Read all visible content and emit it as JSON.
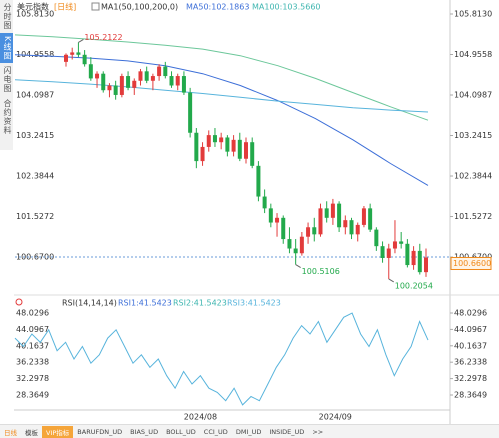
{
  "sidebar": {
    "tabs": [
      "分时图",
      "K线图",
      "闪电图",
      "合约资料"
    ]
  },
  "header": {
    "symbol": "美元指数",
    "period": "[日线]",
    "indicator": "MA1(50,100,200,0)",
    "ma50": "MA50:102.1863",
    "ma100": "MA100:103.5660"
  },
  "chart_data": [
    {
      "type": "candlestick",
      "up_color": "#e23b3b",
      "down_color": "#22a94b",
      "open": [
        104.8,
        104.95,
        105.0,
        104.95,
        104.75,
        104.45,
        104.55,
        104.2,
        104.3,
        104.1,
        104.5,
        104.25,
        104.4,
        104.6,
        104.4,
        104.5,
        104.7,
        104.5,
        104.3,
        104.5,
        104.15,
        103.3,
        102.7,
        103.0,
        103.25,
        103.1,
        103.2,
        102.9,
        103.15,
        102.75,
        103.1,
        102.6,
        101.95,
        101.7,
        101.4,
        101.5,
        101.05,
        100.85,
        100.75,
        101.1,
        101.3,
        101.15,
        101.7,
        101.5,
        101.8,
        101.3,
        101.45,
        101.15,
        101.35,
        101.7,
        101.25,
        100.9,
        100.65,
        100.85,
        101.0,
        100.95,
        100.5,
        100.8,
        100.35
      ],
      "high": [
        104.98,
        105.1,
        105.2122,
        105.05,
        104.9,
        104.6,
        104.6,
        104.35,
        104.4,
        104.55,
        104.6,
        104.45,
        104.65,
        104.7,
        104.55,
        104.75,
        104.8,
        104.6,
        104.55,
        104.6,
        104.25,
        103.4,
        103.1,
        103.35,
        103.4,
        103.3,
        103.25,
        103.25,
        103.3,
        103.2,
        103.2,
        102.7,
        102.1,
        101.8,
        101.6,
        101.55,
        101.3,
        101.05,
        101.2,
        101.4,
        101.5,
        101.8,
        101.85,
        101.9,
        101.85,
        101.55,
        101.5,
        101.4,
        101.75,
        101.8,
        101.3,
        101.0,
        100.95,
        101.45,
        101.2,
        101.05,
        100.9,
        100.95,
        100.85
      ],
      "low": [
        104.7,
        104.85,
        104.9,
        104.7,
        104.4,
        104.25,
        104.15,
        104.05,
        104.0,
        104.05,
        104.2,
        104.1,
        104.3,
        104.35,
        104.2,
        104.4,
        104.45,
        104.25,
        104.2,
        104.1,
        103.2,
        102.55,
        102.6,
        102.9,
        103.0,
        102.95,
        102.8,
        102.8,
        102.7,
        102.65,
        102.55,
        101.85,
        101.6,
        101.3,
        101.1,
        100.95,
        100.75,
        100.5106,
        100.7,
        100.95,
        101.0,
        101.1,
        101.4,
        101.35,
        101.2,
        101.15,
        101.05,
        101.0,
        101.3,
        101.2,
        100.8,
        100.55,
        100.2054,
        100.75,
        100.85,
        100.45,
        100.4,
        100.3,
        100.25
      ],
      "close": [
        104.95,
        105.0,
        104.95,
        104.75,
        104.45,
        104.55,
        104.2,
        104.3,
        104.1,
        104.5,
        104.25,
        104.4,
        104.6,
        104.4,
        104.5,
        104.7,
        104.5,
        104.3,
        104.5,
        104.15,
        103.3,
        102.7,
        103.0,
        103.25,
        103.1,
        103.2,
        102.9,
        103.15,
        102.75,
        103.1,
        102.6,
        101.95,
        101.7,
        101.4,
        101.5,
        101.05,
        100.85,
        100.75,
        101.1,
        101.3,
        101.15,
        101.7,
        101.5,
        101.8,
        101.3,
        101.45,
        101.15,
        101.35,
        101.7,
        101.25,
        100.9,
        100.65,
        100.85,
        101.0,
        100.95,
        100.5,
        100.8,
        100.35,
        100.66
      ],
      "series": [
        {
          "name": "MA50",
          "color": "#3d6fd8",
          "values": [
            104.95,
            104.92,
            104.88,
            104.82,
            104.72,
            104.55,
            104.3,
            103.98,
            103.6,
            103.15,
            102.65,
            102.1863
          ]
        },
        {
          "name": "MA100",
          "color": "#6cc79a",
          "values": [
            105.37,
            105.33,
            105.28,
            105.22,
            105.15,
            105.07,
            104.93,
            104.72,
            104.45,
            104.15,
            103.85,
            103.566
          ]
        },
        {
          "color": "#58b4dc",
          "values": [
            104.42,
            104.38,
            104.33,
            104.27,
            104.2,
            104.13,
            104.05,
            103.97,
            103.9,
            103.83,
            103.78,
            103.74
          ]
        }
      ],
      "ylim": [
        99.93,
        105.94
      ],
      "yticks": [
        {
          "value": 105.813,
          "label": "105.8130"
        },
        104.9558,
        104.0987,
        103.2415,
        102.3844,
        101.5272,
        {
          "value": 100.67,
          "label": "100.6700"
        }
      ],
      "reference_line": 100.67,
      "last_price": {
        "value": 100.66,
        "label": "100.6600"
      },
      "annotations": [
        {
          "value": 105.2122,
          "label": "105.2122",
          "color": "#e23b3b"
        },
        {
          "value": 100.5106,
          "label": "100.5106",
          "color": "#22a94b"
        },
        {
          "value": 100.2054,
          "label": "100.2054",
          "color": "#22a94b"
        }
      ]
    },
    {
      "type": "line",
      "title": "RSI(14,14,14)",
      "legend": [
        {
          "text": "RSI1:41.5423",
          "color": "#3d6fd8"
        },
        {
          "text": "RSI2:41.5423",
          "color": "#3fb6b0"
        },
        {
          "text": "RSI3:41.5423",
          "color": "#58b4dc"
        }
      ],
      "categories": [
        null,
        null,
        null,
        null,
        null,
        null,
        null,
        null,
        null,
        null,
        null,
        null,
        null,
        null,
        null,
        null,
        null,
        null,
        null,
        null,
        null,
        null,
        "2024/08",
        null,
        null,
        null,
        null,
        null,
        null,
        null,
        null,
        null,
        null,
        null,
        null,
        null,
        null,
        null,
        "2024/09",
        null,
        null,
        null,
        null,
        null,
        null,
        null,
        null,
        null,
        null,
        null
      ],
      "series": [
        {
          "name": "RSI1",
          "color": "#58b4dc",
          "values": [
            42,
            40,
            43,
            41,
            44,
            39,
            41,
            37,
            40,
            36,
            38,
            42,
            44,
            40,
            36,
            38,
            35,
            37,
            33,
            30,
            34,
            31,
            33,
            30,
            29,
            27,
            30,
            26,
            28,
            27,
            31,
            35,
            38,
            42,
            45,
            43,
            46,
            41,
            44,
            47,
            48,
            43,
            40,
            44,
            38,
            33,
            37,
            40,
            46,
            41.5423
          ]
        }
      ],
      "ylim": [
        24.77,
        49.23
      ],
      "yticks": [
        48.0296,
        44.0967,
        40.1637,
        36.2338,
        32.2978,
        28.3649
      ]
    }
  ],
  "toolbar": {
    "tabs": [
      "日线",
      "模板",
      "VIP指标",
      "BARUFDN_UD",
      "BIAS_UD",
      "BOLL_UD",
      "CCI_UD",
      "DMI_UD",
      "INSIDE_UD",
      ">>"
    ]
  }
}
